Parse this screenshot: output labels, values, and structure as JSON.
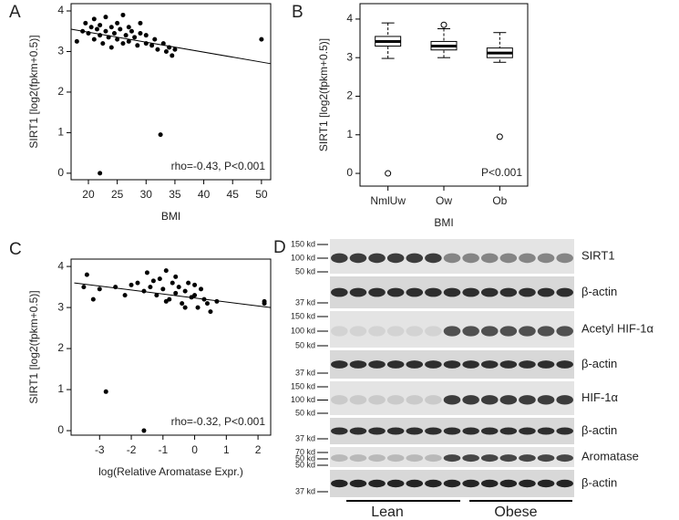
{
  "chart_data": [
    {
      "type": "scatter",
      "panel": "A",
      "ylabel": "SIRT1 [log2(fpkm+0.5)]",
      "xlabel": "BMI",
      "annotation": "rho=-0.43, P<0.001",
      "xlim": [
        17,
        51.6
      ],
      "xticks": [
        20,
        25,
        30,
        35,
        40,
        45,
        50
      ],
      "ylim": [
        -0.16,
        4.18
      ],
      "yticks": [
        0,
        1,
        2,
        3,
        4
      ],
      "color": "#000000",
      "x": [
        18,
        19,
        19.5,
        20,
        20.5,
        21,
        21,
        21.5,
        22,
        22,
        22.5,
        23,
        23,
        23.5,
        24,
        24,
        24.5,
        25,
        25,
        25.5,
        26,
        26,
        26.5,
        27,
        27,
        27.5,
        28,
        28.5,
        29,
        29,
        30,
        30,
        31,
        31.5,
        32,
        33,
        33.5,
        34,
        34.5,
        35,
        22,
        32.5,
        50
      ],
      "y": [
        3.25,
        3.5,
        3.7,
        3.45,
        3.6,
        3.3,
        3.8,
        3.55,
        3.4,
        3.65,
        3.2,
        3.5,
        3.85,
        3.35,
        3.6,
        3.1,
        3.45,
        3.7,
        3.3,
        3.55,
        3.2,
        3.9,
        3.4,
        3.6,
        3.25,
        3.5,
        3.35,
        3.15,
        3.45,
        3.7,
        3.2,
        3.4,
        3.15,
        3.3,
        3.05,
        3.2,
        3.0,
        3.1,
        2.9,
        3.05,
        0,
        0.95,
        3.3
      ],
      "fit_line": {
        "x": [
          17,
          51.6
        ],
        "y": [
          3.55,
          2.7
        ]
      }
    },
    {
      "type": "box",
      "panel": "B",
      "ylabel": "SIRT1 [log2(fpkm+0.5)]",
      "xlabel": "BMI",
      "annotation": "P<0.001",
      "categories": [
        "NmlUw",
        "Ow",
        "Ob"
      ],
      "ylim": [
        -0.33,
        4.4
      ],
      "yticks": [
        0,
        1,
        2,
        3,
        4
      ],
      "boxes": [
        {
          "min": 2.98,
          "q1": 3.3,
          "median": 3.42,
          "q3": 3.55,
          "max": 3.9,
          "outliers": [
            0
          ]
        },
        {
          "min": 3.0,
          "q1": 3.2,
          "median": 3.3,
          "q3": 3.42,
          "max": 3.75,
          "outliers": [
            3.85
          ]
        },
        {
          "min": 2.88,
          "q1": 3.0,
          "median": 3.12,
          "q3": 3.25,
          "max": 3.65,
          "outliers": [
            0.95
          ]
        }
      ]
    },
    {
      "type": "scatter",
      "panel": "C",
      "ylabel": "SIRT1 [log2(fpkm+0.5)]",
      "xlabel": "log(Relative Aromatase Expr.)",
      "annotation": "rho=-0.32, P<0.001",
      "xlim": [
        -3.9,
        2.4
      ],
      "xticks": [
        -3,
        -2,
        -1,
        0,
        1,
        2
      ],
      "ylim": [
        -0.11,
        4.18
      ],
      "yticks": [
        0,
        1,
        2,
        3,
        4
      ],
      "color": "#000000",
      "x": [
        -3.5,
        -3.4,
        -3.2,
        -3.0,
        -2.5,
        -2.2,
        -2.0,
        -1.8,
        -1.6,
        -1.5,
        -1.4,
        -1.2,
        -1.1,
        -1.0,
        -0.9,
        -0.8,
        -0.7,
        -0.6,
        -0.5,
        -0.4,
        -0.3,
        -0.2,
        -0.1,
        0,
        0.1,
        0.2,
        0.3,
        0.4,
        0.5,
        0.7,
        -1.3,
        -0.9,
        -0.6,
        -0.3,
        0,
        -2.8,
        -1.6,
        2.2,
        2.2
      ],
      "y": [
        3.5,
        3.8,
        3.2,
        3.45,
        3.5,
        3.3,
        3.55,
        3.6,
        3.4,
        3.85,
        3.5,
        3.3,
        3.7,
        3.45,
        3.9,
        3.2,
        3.6,
        3.35,
        3.5,
        3.1,
        3.4,
        3.6,
        3.25,
        3.3,
        3.0,
        3.45,
        3.2,
        3.1,
        2.9,
        3.15,
        3.65,
        3.15,
        3.75,
        3.0,
        3.55,
        0.95,
        0,
        3.15,
        3.1
      ],
      "fit_line": {
        "x": [
          -3.8,
          2.4
        ],
        "y": [
          3.6,
          3.0
        ]
      }
    }
  ],
  "blot": {
    "panel": "D",
    "rows": [
      {
        "label": "SIRT1",
        "markers": [
          "150 kd",
          "100 kd",
          "50 kd"
        ]
      },
      {
        "label": "β-actin",
        "markers": [
          "37 kd"
        ]
      },
      {
        "label": "Acetyl HIF-1α",
        "markers": [
          "150 kd",
          "100 kd",
          "50 kd"
        ]
      },
      {
        "label": "β-actin",
        "markers": [
          "37 kd"
        ]
      },
      {
        "label": "HIF-1α",
        "markers": [
          "150 kd",
          "100 kd",
          "50 kd"
        ]
      },
      {
        "label": "β-actin",
        "markers": [
          "37 kd"
        ]
      },
      {
        "label": "Aromatase",
        "markers": [
          "70 kd",
          "50 kd",
          "50 kd"
        ]
      },
      {
        "label": "β-actin",
        "markers": [
          "37 kd"
        ]
      }
    ],
    "groups": [
      "Lean",
      "Obese"
    ]
  }
}
